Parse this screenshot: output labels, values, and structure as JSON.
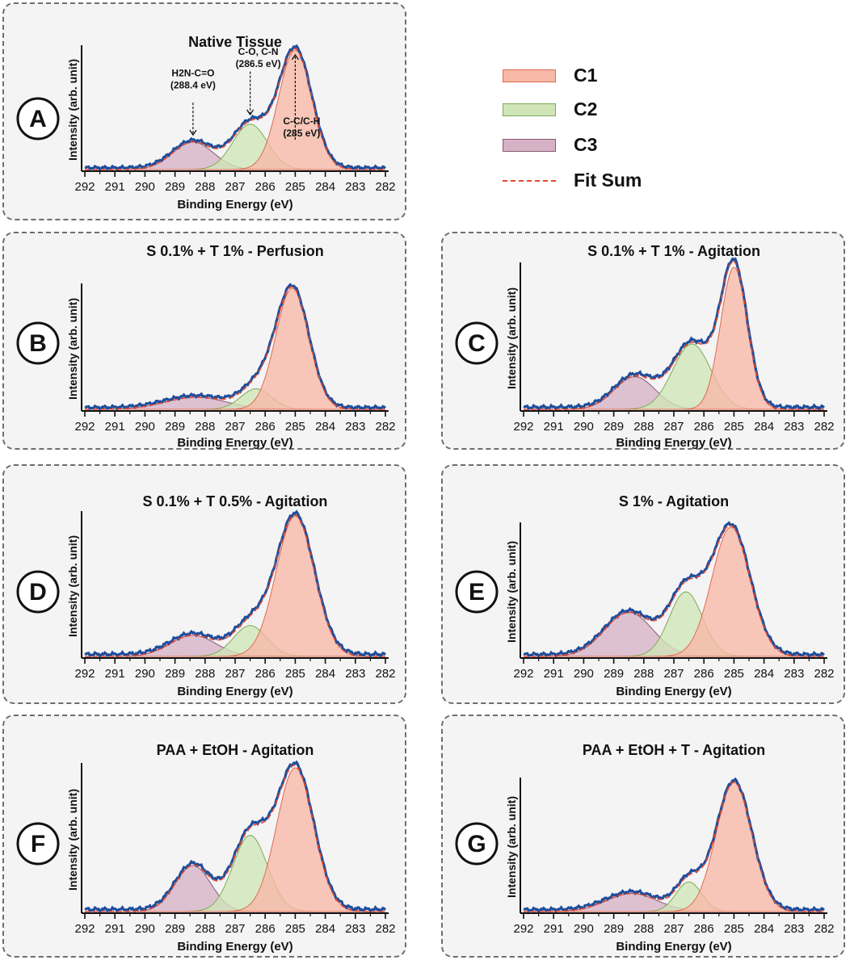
{
  "legend": {
    "items": [
      {
        "label": "C1",
        "fill": "#f7b8a8",
        "stroke": "#e06a50"
      },
      {
        "label": "C2",
        "fill": "#cfe5b8",
        "stroke": "#7faa55"
      },
      {
        "label": "C3",
        "fill": "#d6b2c6",
        "stroke": "#8a5a72"
      },
      {
        "label": "Fit Sum",
        "fill": "none",
        "stroke": "#e8452a"
      }
    ]
  },
  "colors": {
    "envelope": "#1f4e9c",
    "fit_sum": "#e8452a",
    "c1_fill": "#f7b8a8",
    "c2_fill": "#cfe5b8",
    "c3_fill": "#d6b2c6"
  },
  "chart_data": [
    {
      "panel": "A",
      "type": "area",
      "title": "Native Tissue",
      "xlabel": "Binding Energy (eV)",
      "ylabel": "Intensity  (arb. unit)",
      "xlim": [
        292,
        282
      ],
      "ticks": [
        "292",
        "291",
        "290",
        "289",
        "288",
        "287",
        "286",
        "285",
        "284",
        "283",
        "282"
      ],
      "components": [
        {
          "name": "C1",
          "center": 285.0,
          "height": 1.0,
          "fwhm": 1.3
        },
        {
          "name": "C2",
          "center": 286.5,
          "height": 0.38,
          "fwhm": 1.35
        },
        {
          "name": "C3",
          "center": 288.4,
          "height": 0.23,
          "fwhm": 1.6
        }
      ],
      "baseline": 0.0,
      "annotations": [
        {
          "text": "C-C/C-H",
          "sub": "(285 eV)",
          "x": 285.0
        },
        {
          "text": "C-O, C-N",
          "sub": "(286.5 eV)",
          "x": 286.5
        },
        {
          "text": "H2N-C=O",
          "sub": "(288.4 eV)",
          "x": 288.4
        }
      ]
    },
    {
      "panel": "B",
      "type": "area",
      "title": "S 0.1% + T 1% - Perfusion",
      "xlabel": "Binding Energy (eV)",
      "ylabel": "Intensity  (arb. unit)",
      "xlim": [
        292,
        282
      ],
      "ticks": [
        "292",
        "291",
        "290",
        "289",
        "288",
        "287",
        "286",
        "285",
        "284",
        "283",
        "282"
      ],
      "components": [
        {
          "name": "C1",
          "center": 285.1,
          "height": 1.0,
          "fwhm": 1.3
        },
        {
          "name": "C2",
          "center": 286.3,
          "height": 0.17,
          "fwhm": 1.2
        },
        {
          "name": "C3",
          "center": 288.3,
          "height": 0.1,
          "fwhm": 2.4
        }
      ],
      "baseline": 0.0
    },
    {
      "panel": "C",
      "type": "area",
      "title": "S 0.1% + T 1% - Agitation",
      "xlabel": "Binding Energy (eV)",
      "ylabel": "Intensity  (arb. unit)",
      "xlim": [
        292,
        282
      ],
      "ticks": [
        "292",
        "291",
        "290",
        "289",
        "288",
        "287",
        "286",
        "285",
        "284",
        "283",
        "282"
      ],
      "components": [
        {
          "name": "C1",
          "center": 285.0,
          "height": 1.0,
          "fwhm": 1.05
        },
        {
          "name": "C2",
          "center": 286.4,
          "height": 0.46,
          "fwhm": 1.5
        },
        {
          "name": "C3",
          "center": 288.3,
          "height": 0.23,
          "fwhm": 1.6
        }
      ],
      "baseline": 0.0
    },
    {
      "panel": "D",
      "type": "area",
      "title": "S  0.1% + T 0.5% - Agitation",
      "xlabel": "Binding Energy (eV)",
      "ylabel": "Intensity  (arb. unit)",
      "xlim": [
        292,
        282
      ],
      "ticks": [
        "292",
        "291",
        "290",
        "289",
        "288",
        "287",
        "286",
        "285",
        "284",
        "283",
        "282"
      ],
      "components": [
        {
          "name": "C1",
          "center": 285.0,
          "height": 1.0,
          "fwhm": 1.5
        },
        {
          "name": "C2",
          "center": 286.5,
          "height": 0.22,
          "fwhm": 1.3
        },
        {
          "name": "C3",
          "center": 288.4,
          "height": 0.15,
          "fwhm": 1.8
        }
      ],
      "baseline": 0.0
    },
    {
      "panel": "E",
      "type": "area",
      "title": "S 1% -  Agitation",
      "xlabel": "Binding Energy (eV)",
      "ylabel": "Intensity  (arb. unit)",
      "xlim": [
        292,
        282
      ],
      "ticks": [
        "292",
        "291",
        "290",
        "289",
        "288",
        "287",
        "286",
        "285",
        "284",
        "283",
        "282"
      ],
      "components": [
        {
          "name": "C1",
          "center": 285.1,
          "height": 1.0,
          "fwhm": 1.5
        },
        {
          "name": "C2",
          "center": 286.6,
          "height": 0.5,
          "fwhm": 1.3
        },
        {
          "name": "C3",
          "center": 288.5,
          "height": 0.34,
          "fwhm": 1.9
        }
      ],
      "baseline": 0.0
    },
    {
      "panel": "F",
      "type": "area",
      "title": "PAA + EtOH - Agitation",
      "xlabel": "Binding Energy (eV)",
      "ylabel": "Intensity  (arb. unit)",
      "xlim": [
        292,
        282
      ],
      "ticks": [
        "292",
        "291",
        "290",
        "289",
        "288",
        "287",
        "286",
        "285",
        "284",
        "283",
        "282"
      ],
      "components": [
        {
          "name": "C1",
          "center": 285.0,
          "height": 1.0,
          "fwhm": 1.45
        },
        {
          "name": "C2",
          "center": 286.5,
          "height": 0.53,
          "fwhm": 1.35
        },
        {
          "name": "C3",
          "center": 288.4,
          "height": 0.32,
          "fwhm": 1.4
        }
      ],
      "baseline": 0.0
    },
    {
      "panel": "G",
      "type": "area",
      "title": "PAA + EtOH + T - Agitation",
      "xlabel": "Binding Energy (eV)",
      "ylabel": "Intensity  (arb. unit)",
      "xlim": [
        292,
        282
      ],
      "ticks": [
        "292",
        "291",
        "290",
        "289",
        "288",
        "287",
        "286",
        "285",
        "284",
        "283",
        "282"
      ],
      "components": [
        {
          "name": "C1",
          "center": 285.0,
          "height": 1.0,
          "fwhm": 1.4
        },
        {
          "name": "C2",
          "center": 286.5,
          "height": 0.23,
          "fwhm": 1.0
        },
        {
          "name": "C3",
          "center": 288.4,
          "height": 0.14,
          "fwhm": 2.0
        }
      ],
      "baseline": 0.0
    }
  ]
}
